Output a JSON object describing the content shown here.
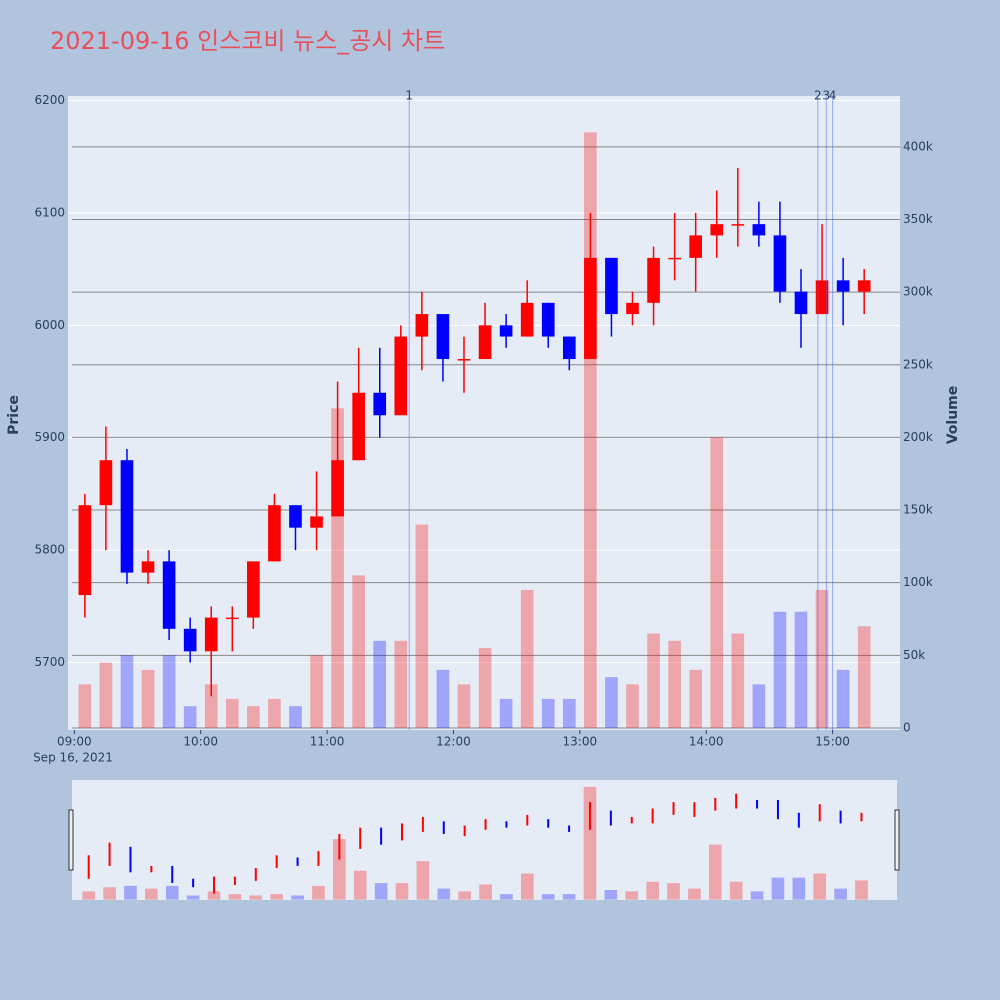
{
  "chart_data": {
    "type": "candlestick",
    "title": "2021-09-16 인스코비 뉴스_공시 차트",
    "ylabel": "Price",
    "y2label": "Volume",
    "x_date_label": "Sep 16, 2021",
    "up_color": "#ff0000",
    "down_color": "#0000ff",
    "x": [
      "09:05",
      "09:15",
      "09:25",
      "09:35",
      "09:45",
      "09:55",
      "10:05",
      "10:15",
      "10:25",
      "10:35",
      "10:45",
      "10:55",
      "11:05",
      "11:15",
      "11:25",
      "11:35",
      "11:45",
      "11:55",
      "12:05",
      "12:15",
      "12:25",
      "12:35",
      "12:45",
      "12:55",
      "13:05",
      "13:15",
      "13:25",
      "13:35",
      "13:45",
      "13:55",
      "14:05",
      "14:15",
      "14:25",
      "14:35",
      "14:45",
      "14:55",
      "15:05",
      "15:15"
    ],
    "open": [
      5760,
      5840,
      5880,
      5780,
      5790,
      5730,
      5710,
      5740,
      5740,
      5790,
      5840,
      5820,
      5830,
      5880,
      5940,
      5920,
      5990,
      6010,
      5970,
      5970,
      6000,
      5990,
      6020,
      5990,
      5970,
      6060,
      6010,
      6020,
      6060,
      6060,
      6080,
      6090,
      6090,
      6080,
      6030,
      6010,
      6040,
      6030
    ],
    "high": [
      5850,
      5910,
      5890,
      5800,
      5800,
      5740,
      5750,
      5750,
      5790,
      5850,
      5840,
      5870,
      5950,
      5980,
      5980,
      6000,
      6030,
      6010,
      5990,
      6020,
      6010,
      6040,
      6020,
      5990,
      6100,
      6060,
      6030,
      6070,
      6100,
      6100,
      6120,
      6140,
      6110,
      6110,
      6050,
      6090,
      6060,
      6050
    ],
    "low": [
      5740,
      5800,
      5770,
      5770,
      5720,
      5700,
      5670,
      5710,
      5730,
      5790,
      5800,
      5800,
      5830,
      5880,
      5900,
      5920,
      5960,
      5950,
      5940,
      5970,
      5980,
      5990,
      5980,
      5960,
      5970,
      5990,
      6000,
      6000,
      6040,
      6030,
      6060,
      6070,
      6070,
      6020,
      5980,
      6010,
      6000,
      6010
    ],
    "close": [
      5840,
      5880,
      5780,
      5790,
      5730,
      5710,
      5740,
      5740,
      5790,
      5840,
      5820,
      5830,
      5880,
      5940,
      5920,
      5990,
      6010,
      5970,
      5970,
      6000,
      5990,
      6020,
      5990,
      5970,
      6060,
      6010,
      6020,
      6060,
      6060,
      6080,
      6090,
      6090,
      6080,
      6030,
      6010,
      6040,
      6030,
      6040
    ],
    "volume": [
      30000,
      45000,
      50000,
      40000,
      50000,
      15000,
      30000,
      20000,
      15000,
      20000,
      15000,
      50000,
      220000,
      105000,
      60000,
      60000,
      140000,
      40000,
      30000,
      55000,
      20000,
      95000,
      20000,
      20000,
      410000,
      35000,
      30000,
      65000,
      60000,
      40000,
      200000,
      65000,
      30000,
      80000,
      80000,
      95000,
      40000,
      70000
    ],
    "xlim": [
      "08:57",
      "15:32"
    ],
    "xticks": [
      "09:00",
      "10:00",
      "11:00",
      "12:00",
      "13:00",
      "14:00",
      "15:00"
    ],
    "ylim": [
      5640,
      6204
    ],
    "yticks": [
      5700,
      5800,
      5900,
      6000,
      6100,
      6200
    ],
    "y2lim": [
      -1400,
      435000
    ],
    "y2ticks": [
      0,
      {
        "value": 50000,
        "label": "50k"
      },
      {
        "value": 100000,
        "label": "100k"
      },
      {
        "value": 150000,
        "label": "150k"
      },
      {
        "value": 200000,
        "label": "200k"
      },
      {
        "value": 250000,
        "label": "250k"
      },
      {
        "value": 300000,
        "label": "300k"
      },
      {
        "value": 350000,
        "label": "350k"
      },
      {
        "value": 400000,
        "label": "400k"
      }
    ],
    "news": {
      "x": [
        "11:39",
        "14:53",
        "14:57",
        "15:00"
      ],
      "labels": [
        "1",
        "2",
        "3",
        "4"
      ]
    }
  }
}
